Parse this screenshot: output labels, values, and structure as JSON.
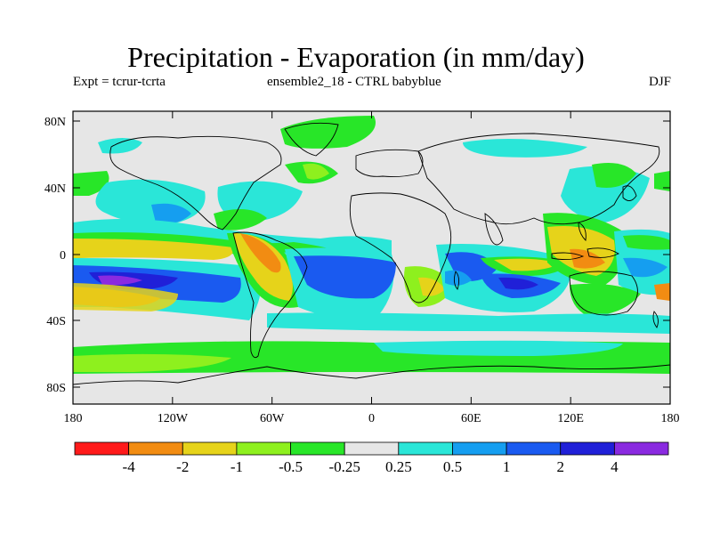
{
  "title": "Precipitation - Evaporation (in mm/day)",
  "subtitle_left": "Expt = tcrur-tcrta",
  "subtitle_center": "ensemble2_18 - CTRL babyblue",
  "subtitle_right": "DJF",
  "y_ticks": [
    "80N",
    "40N",
    "0",
    "40S",
    "80S"
  ],
  "x_ticks": [
    "180",
    "120W",
    "60W",
    "0",
    "60E",
    "120E",
    "180"
  ],
  "colorbar": {
    "colors": [
      "#ff1a1a",
      "#f28c12",
      "#e6d31a",
      "#8ef01e",
      "#28e628",
      "#e6e6e6",
      "#2ae6d8",
      "#159ef0",
      "#1a5af0",
      "#2020d8",
      "#8a2ae0"
    ],
    "labels": [
      "-4",
      "-2",
      "-1",
      "-0.5",
      "-0.25",
      "0.25",
      "0.5",
      "1",
      "2",
      "4"
    ]
  },
  "legend_colors": {
    "neutral": "#e6e6e6",
    "strong_neg": "#f28c12",
    "neg": "#e6d31a",
    "weak_neg": "#8ef01e",
    "weak_neg2": "#28e628",
    "weak_pos": "#2ae6d8",
    "pos": "#159ef0",
    "strong_pos": "#1a5af0",
    "stronger_pos": "#2020d8",
    "max_pos": "#8a2ae0"
  }
}
